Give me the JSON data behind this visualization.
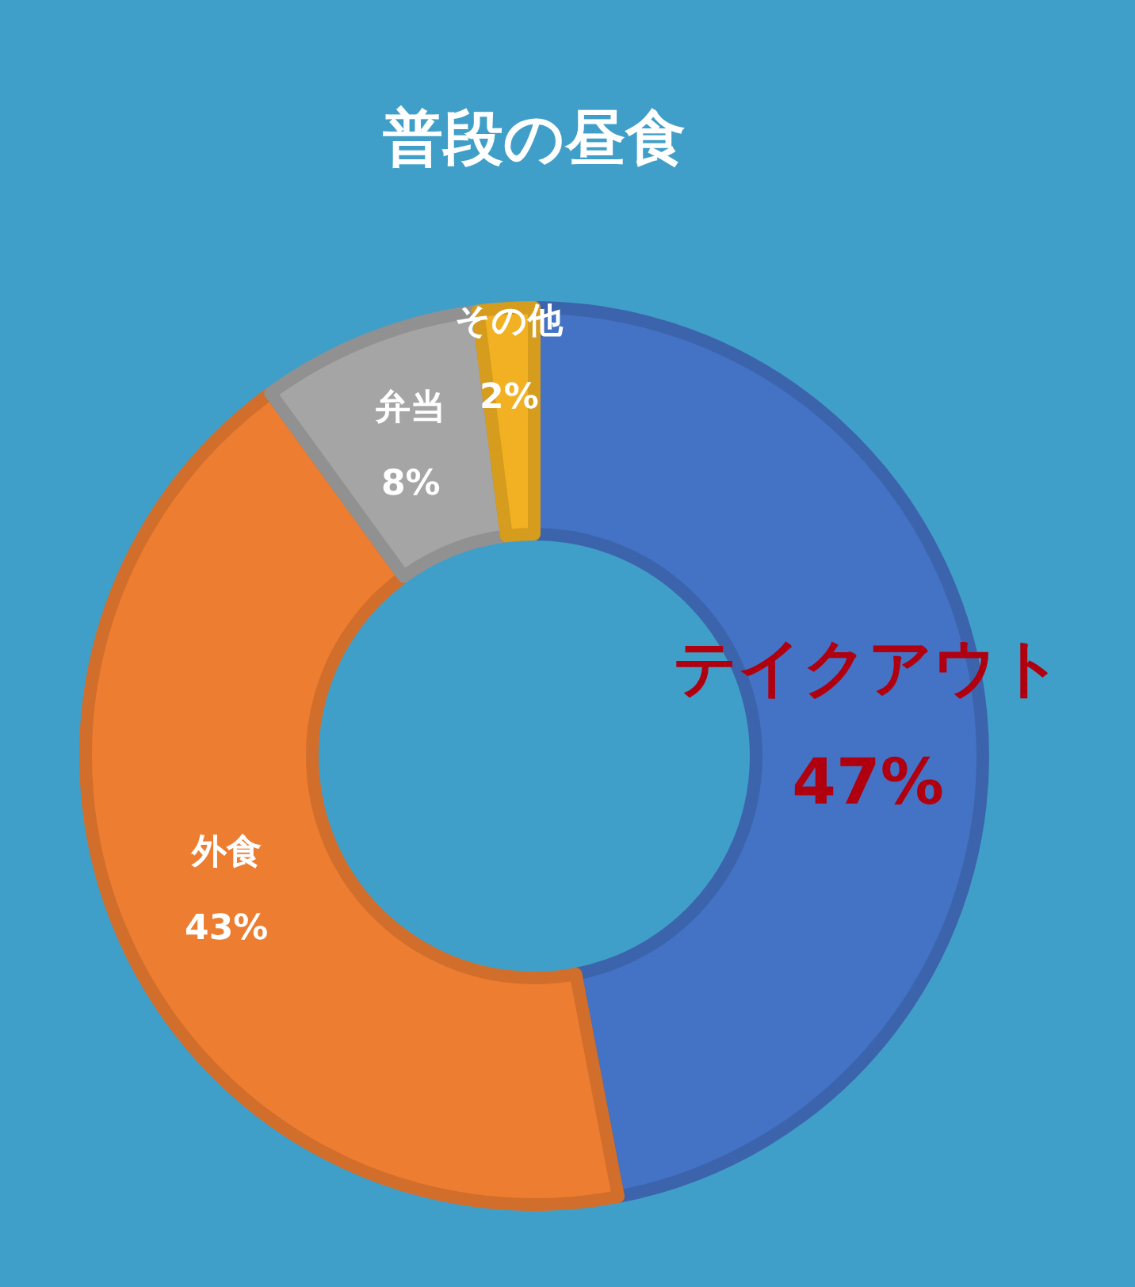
{
  "chart_data": {
    "type": "donut",
    "title": "普段の昼食",
    "categories": [
      "テイクアウト",
      "外食",
      "弁当",
      "その他"
    ],
    "values": [
      47,
      43,
      8,
      2
    ],
    "colors": [
      "#4472c4",
      "#ed7d31",
      "#a5a5a5",
      "#f2b122"
    ],
    "value_labels": [
      "47%",
      "43%",
      "8%",
      "2%"
    ]
  }
}
